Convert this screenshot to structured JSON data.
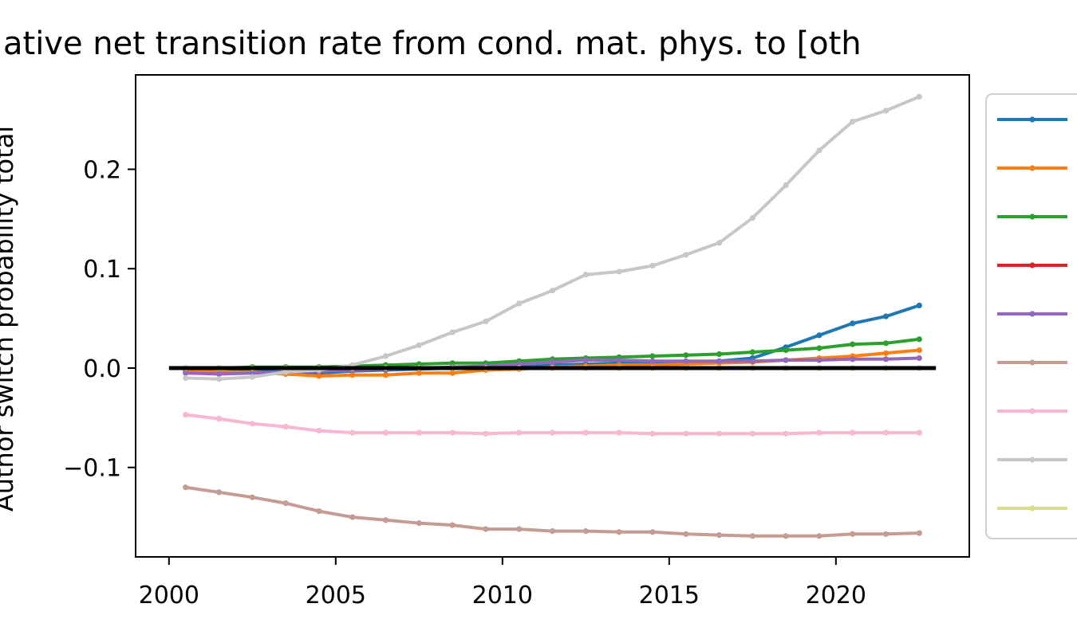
{
  "chart_data": {
    "type": "line",
    "title": "ative net transition rate from cond. mat. phys. to [oth",
    "xlabel": "",
    "ylabel": "Author switch probability total",
    "xlim": [
      1999,
      2024
    ],
    "ylim": [
      -0.19,
      0.295
    ],
    "xticks": [
      2000,
      2005,
      2010,
      2015,
      2020
    ],
    "yticks": [
      -0.1,
      0.0,
      0.1,
      0.2
    ],
    "ytick_labels": [
      "−0.1",
      "0.0",
      "0.1",
      "0.2"
    ],
    "grid": false,
    "legend_position": "right (outside, clipped)",
    "x": [
      2000.5,
      2001.5,
      2002.5,
      2003.5,
      2004.5,
      2005.5,
      2006.5,
      2007.5,
      2008.5,
      2009.5,
      2010.5,
      2011.5,
      2012.5,
      2013.5,
      2014.5,
      2015.5,
      2016.5,
      2017.5,
      2018.5,
      2019.5,
      2020.5,
      2021.5,
      2022.5
    ],
    "series": [
      {
        "color": "#1f77b4",
        "values": [
          -0.003,
          -0.004,
          -0.003,
          -0.004,
          -0.005,
          -0.003,
          -0.002,
          -0.001,
          0.0,
          0.001,
          0.002,
          0.003,
          0.004,
          0.005,
          0.005,
          0.006,
          0.007,
          0.01,
          0.021,
          0.033,
          0.045,
          0.052,
          0.063
        ]
      },
      {
        "color": "#ff7f0e",
        "values": [
          -0.002,
          -0.004,
          -0.004,
          -0.006,
          -0.008,
          -0.007,
          -0.007,
          -0.005,
          -0.005,
          -0.002,
          -0.001,
          0.001,
          0.002,
          0.003,
          0.003,
          0.004,
          0.005,
          0.006,
          0.008,
          0.01,
          0.012,
          0.015,
          0.018
        ]
      },
      {
        "color": "#2ca02c",
        "values": [
          0.0,
          0.0,
          0.001,
          0.001,
          0.001,
          0.002,
          0.003,
          0.004,
          0.005,
          0.005,
          0.007,
          0.009,
          0.01,
          0.011,
          0.012,
          0.013,
          0.014,
          0.016,
          0.018,
          0.02,
          0.024,
          0.025,
          0.029
        ]
      },
      {
        "color": "#d62728",
        "values": [
          0.0,
          0.0,
          0.0,
          0.0,
          0.0,
          0.0,
          0.0,
          0.0,
          0.0,
          0.0,
          0.0,
          0.0,
          0.0,
          0.0,
          0.0,
          0.0,
          0.0,
          0.0,
          0.0,
          0.0,
          0.0,
          0.0,
          0.0
        ]
      },
      {
        "color": "#9467bd",
        "values": [
          -0.005,
          -0.006,
          -0.005,
          -0.004,
          -0.003,
          -0.002,
          -0.001,
          0.0,
          0.001,
          0.002,
          0.004,
          0.006,
          0.008,
          0.008,
          0.007,
          0.007,
          0.007,
          0.007,
          0.008,
          0.008,
          0.009,
          0.009,
          0.01
        ]
      },
      {
        "color": "#c49c94",
        "values": [
          -0.12,
          -0.125,
          -0.13,
          -0.136,
          -0.144,
          -0.15,
          -0.153,
          -0.156,
          -0.158,
          -0.162,
          -0.162,
          -0.164,
          -0.164,
          -0.165,
          -0.165,
          -0.167,
          -0.168,
          -0.169,
          -0.169,
          -0.169,
          -0.167,
          -0.167,
          -0.166
        ]
      },
      {
        "color": "#f7b6d2",
        "values": [
          -0.047,
          -0.051,
          -0.056,
          -0.059,
          -0.063,
          -0.065,
          -0.065,
          -0.065,
          -0.065,
          -0.066,
          -0.065,
          -0.065,
          -0.065,
          -0.065,
          -0.066,
          -0.066,
          -0.066,
          -0.066,
          -0.066,
          -0.065,
          -0.065,
          -0.065,
          -0.065
        ]
      },
      {
        "color": "#c7c7c7",
        "values": [
          -0.01,
          -0.011,
          -0.009,
          -0.004,
          -0.002,
          0.003,
          0.012,
          0.023,
          0.036,
          0.047,
          0.065,
          0.078,
          0.094,
          0.097,
          0.103,
          0.114,
          0.126,
          0.151,
          0.184,
          0.219,
          0.248,
          0.259,
          0.273
        ]
      },
      {
        "color": "#dbdb8d",
        "values": [
          0.0,
          0.0,
          0.0,
          0.0,
          0.0,
          0.0,
          0.0,
          0.0,
          0.0,
          0.0,
          0.0,
          0.0,
          0.0,
          0.0,
          0.0,
          0.0,
          0.0,
          0.0,
          0.0,
          0.0,
          0.0,
          0.0,
          0.0
        ]
      }
    ],
    "reference_line": {
      "y": 0.0,
      "x_range": [
        2000,
        2023
      ],
      "color": "#000000"
    }
  }
}
